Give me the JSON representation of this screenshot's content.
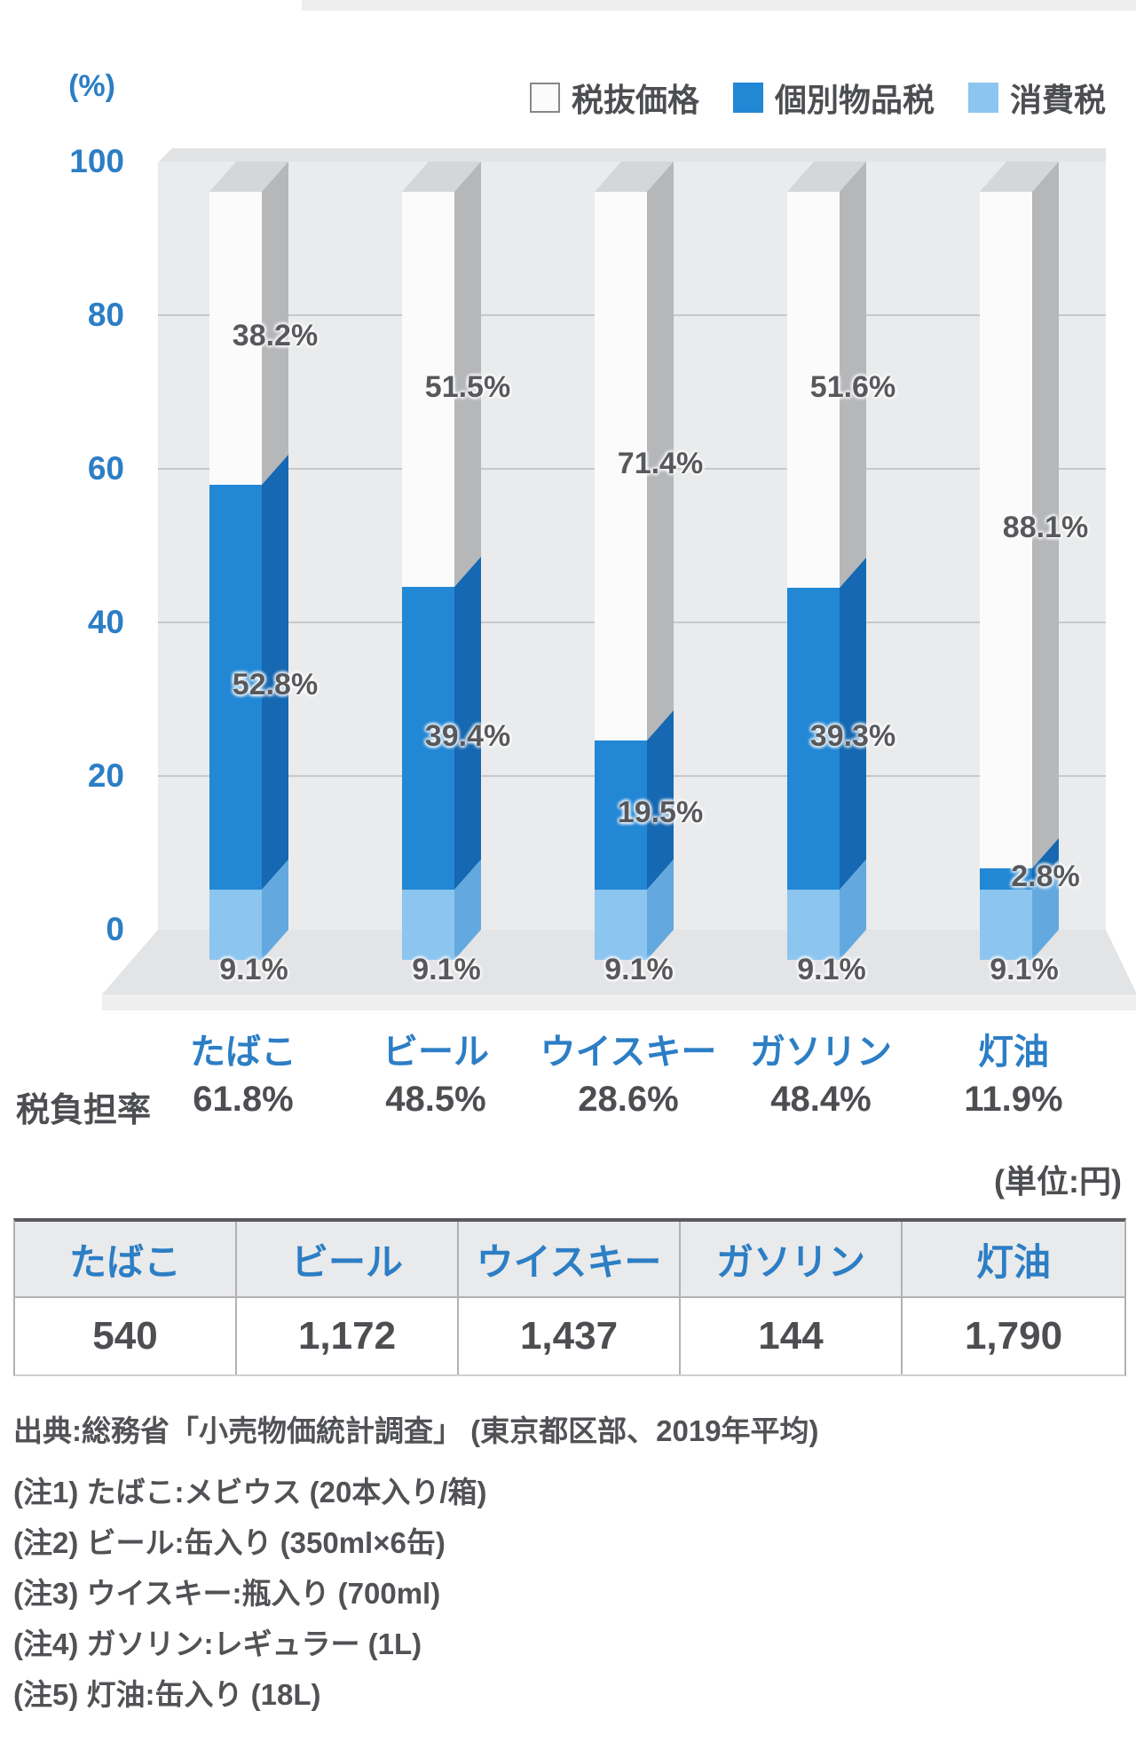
{
  "chart_data": {
    "type": "bar",
    "stacked": true,
    "title": "",
    "unit_label": "(%)",
    "ylim": [
      0,
      100
    ],
    "y_ticks": [
      100,
      80,
      60,
      40,
      20,
      0
    ],
    "grid": true,
    "legend_position": "top-right",
    "legend": [
      {
        "label": "税抜価格",
        "color": "#fbfbfc",
        "border": "#85878a"
      },
      {
        "label": "個別物品税",
        "color": "#2287d5",
        "border": "#2287d5"
      },
      {
        "label": "消費税",
        "color": "#8cc5ef",
        "border": "#8cc5ef"
      }
    ],
    "categories": [
      "たばこ",
      "ビール",
      "ウイスキー",
      "ガソリン",
      "灯油"
    ],
    "series": [
      {
        "name": "消費税",
        "values": [
          9.1,
          9.1,
          9.1,
          9.1,
          9.1
        ]
      },
      {
        "name": "個別物品税",
        "values": [
          52.8,
          39.4,
          19.5,
          39.3,
          2.8
        ]
      },
      {
        "name": "税抜価格",
        "values": [
          38.2,
          51.5,
          71.4,
          51.6,
          88.1
        ]
      }
    ],
    "tax_burden_row": {
      "label": "税負担率",
      "values": [
        "61.8%",
        "48.5%",
        "28.6%",
        "48.4%",
        "11.9%"
      ]
    }
  },
  "table": {
    "unit_note": "(単位:円)",
    "headers": [
      "たばこ",
      "ビール",
      "ウイスキー",
      "ガソリン",
      "灯油"
    ],
    "values": [
      "540",
      "1,172",
      "1,437",
      "144",
      "1,790"
    ]
  },
  "source": "出典:総務省「小売物価統計調査」 (東京都区部、2019年平均)",
  "notes": [
    "(注1) たばこ:メビウス (20本入り/箱)",
    "(注2) ビール:缶入り (350ml×6缶)",
    "(注3) ウイスキー:瓶入り (700ml)",
    "(注4) ガソリン:レギュラー (1L)",
    "(注5) 灯油:缶入り (18L)"
  ],
  "colors": {
    "axis_text": "#2c7ec5",
    "gray_text": "#4c4e51",
    "wall": "#eaebec",
    "gridline": "#c7c8ca",
    "floor": "#e3e4e6",
    "bar_front": {
      "税抜価格": "#fbfbfc",
      "個別物品税": "#2287d5",
      "消費税": "#8cc5ef"
    },
    "bar_side": {
      "税抜価格": "#b6b7b9",
      "個別物品税": "#1568b1",
      "消費税": "#63a9df"
    },
    "bar_top": "#d5d6d8"
  }
}
